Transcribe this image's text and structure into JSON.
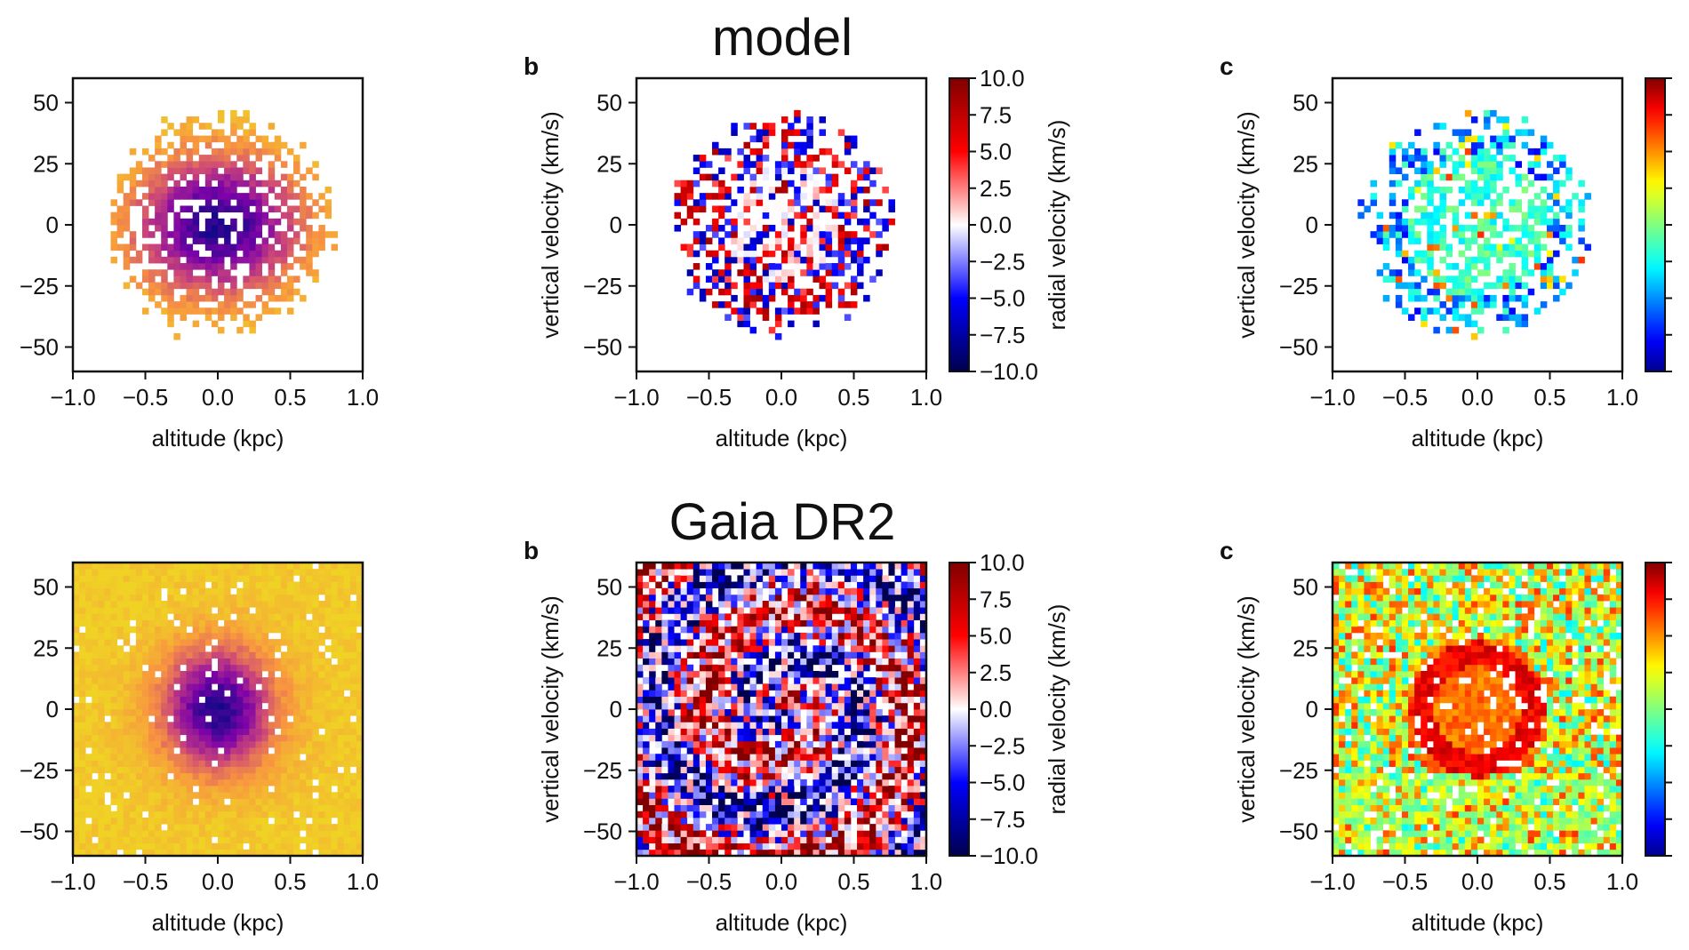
{
  "chart_data": [
    {
      "type": "heatmap",
      "row": "model",
      "panel_letter": "",
      "title": "model",
      "xlabel": "altitude (kpc)",
      "ylabel": "",
      "xlim": [
        -1.0,
        1.0
      ],
      "ylim": [
        -60,
        60
      ],
      "xticks": [
        "−1.0",
        "−0.5",
        "0.0",
        "0.5",
        "1.0"
      ],
      "yticks": [
        "50",
        "25",
        "0",
        "−25",
        "−50"
      ],
      "colormap": "plasma",
      "colorbar": null,
      "pattern": "density",
      "spread": 0.82,
      "fill": 0.74,
      "core_sigma": [
        0.42,
        0.34
      ]
    },
    {
      "type": "heatmap",
      "row": "model",
      "panel_letter": "b",
      "title": "",
      "xlabel": "altitude (kpc)",
      "ylabel": "vertical velocity (km/s)",
      "xlim": [
        -1.0,
        1.0
      ],
      "ylim": [
        -60,
        60
      ],
      "xticks": [
        "−1.0",
        "−0.5",
        "0.0",
        "0.5",
        "1.0"
      ],
      "yticks": [
        "50",
        "25",
        "0",
        "−25",
        "−50"
      ],
      "colormap": "seismic",
      "colorbar": {
        "label": "radial velocity (km/s)",
        "range": [
          -10.0,
          10.0
        ],
        "ticks": [
          "10.0",
          "7.5",
          "5.0",
          "2.5",
          "0.0",
          "−2.5",
          "−5.0",
          "−7.5",
          "−10.0"
        ]
      },
      "pattern": "radial",
      "spread": 0.8,
      "fill": 0.6
    },
    {
      "type": "heatmap",
      "row": "model",
      "panel_letter": "c",
      "title": "",
      "xlabel": "altitude (kpc)",
      "ylabel": "vertical velocity (km/s)",
      "xlim": [
        -1.0,
        1.0
      ],
      "ylim": [
        -60,
        60
      ],
      "xticks": [
        "−1.0",
        "−0.5",
        "0.0",
        "0.5",
        "1.0"
      ],
      "yticks": [
        "50",
        "25",
        "0",
        "−25",
        "−50"
      ],
      "colormap": "jet",
      "colorbar": {
        "label": "",
        "range": [
          0,
          1
        ],
        "ticks": []
      },
      "pattern": "model_jet",
      "spread": 0.82,
      "fill": 0.62
    },
    {
      "type": "heatmap",
      "row": "Gaia DR2",
      "panel_letter": "",
      "title": "Gaia DR2",
      "xlabel": "altitude (kpc)",
      "ylabel": "",
      "xlim": [
        -1.0,
        1.0
      ],
      "ylim": [
        -60,
        60
      ],
      "xticks": [
        "−1.0",
        "−0.5",
        "0.0",
        "0.5",
        "1.0"
      ],
      "yticks": [
        "50",
        "25",
        "0",
        "−25",
        "−50"
      ],
      "colormap": "plasma",
      "colorbar": null,
      "pattern": "density",
      "spread": 2.0,
      "fill": 0.95,
      "core_sigma": [
        0.28,
        0.3
      ]
    },
    {
      "type": "heatmap",
      "row": "Gaia DR2",
      "panel_letter": "b",
      "title": "",
      "xlabel": "altitude (kpc)",
      "ylabel": "vertical velocity (km/s)",
      "xlim": [
        -1.0,
        1.0
      ],
      "ylim": [
        -60,
        60
      ],
      "xticks": [
        "−1.0",
        "−0.5",
        "0.0",
        "0.5",
        "1.0"
      ],
      "yticks": [
        "50",
        "25",
        "0",
        "−25",
        "−50"
      ],
      "colormap": "seismic",
      "colorbar": {
        "label": "radial velocity (km/s)",
        "range": [
          -10.0,
          10.0
        ],
        "ticks": [
          "10.0",
          "7.5",
          "5.0",
          "2.5",
          "0.0",
          "−2.5",
          "−5.0",
          "−7.5",
          "−10.0"
        ]
      },
      "pattern": "spiral",
      "spread": 2.0,
      "fill": 0.9
    },
    {
      "type": "heatmap",
      "row": "Gaia DR2",
      "panel_letter": "c",
      "title": "",
      "xlabel": "altitude (kpc)",
      "ylabel": "vertical velocity (km/s)",
      "xlim": [
        -1.0,
        1.0
      ],
      "ylim": [
        -60,
        60
      ],
      "xticks": [
        "−1.0",
        "−0.5",
        "0.0",
        "0.5",
        "1.0"
      ],
      "yticks": [
        "50",
        "25",
        "0",
        "−25",
        "−50"
      ],
      "colormap": "jet",
      "colorbar": {
        "label": "",
        "range": [
          0,
          1
        ],
        "ticks": []
      },
      "pattern": "gaia_jet",
      "spread": 2.0,
      "fill": 0.9
    }
  ]
}
